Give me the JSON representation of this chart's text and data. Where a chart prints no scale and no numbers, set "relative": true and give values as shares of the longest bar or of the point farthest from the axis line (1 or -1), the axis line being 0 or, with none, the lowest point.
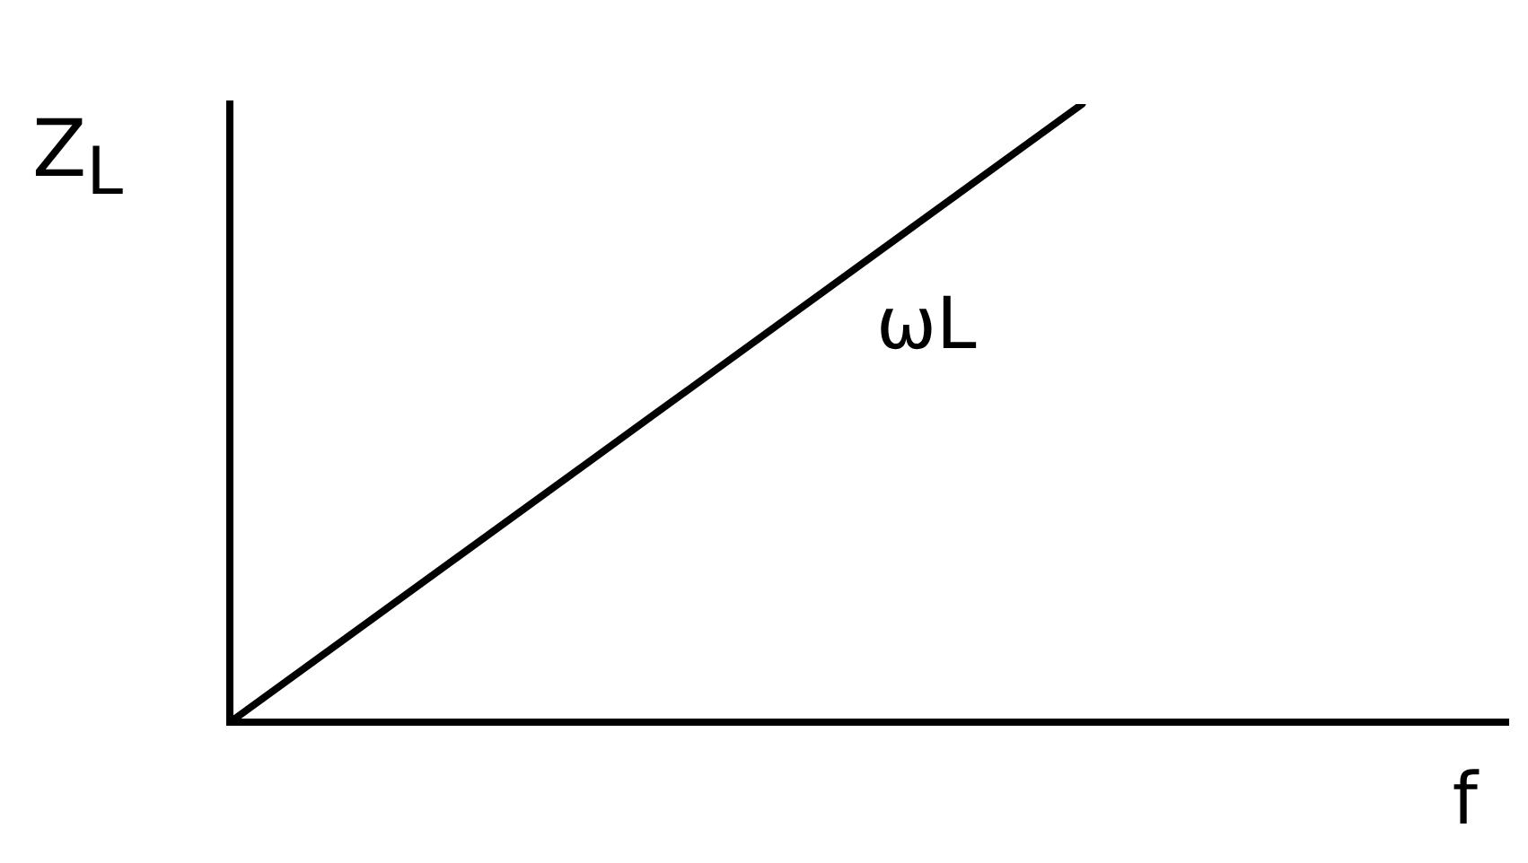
{
  "chart_data": {
    "type": "line",
    "relative": true,
    "xlabel": "f",
    "ylabel": "Z$_{L}$",
    "annotations": [
      "ωL"
    ],
    "categories": [
      null,
      null,
      null,
      null
    ],
    "series": [
      {
        "color": "#000000",
        "values": [
          0,
          0.5,
          1,
          null
        ]
      }
    ],
    "grid": false,
    "legend": false,
    "marker": "none",
    "line_style": "solid"
  }
}
